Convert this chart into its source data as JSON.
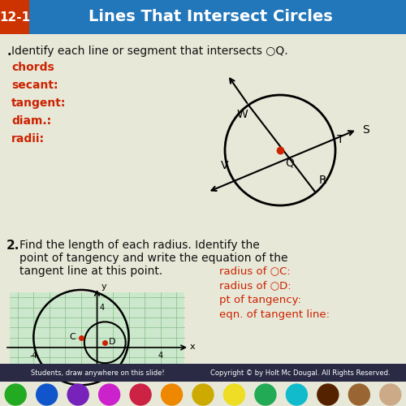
{
  "title": "Lines That Intersect Circles",
  "title_num": "12-1",
  "title_bg": "#2277bb",
  "title_red_bg": "#cc3300",
  "bg_color": "#e8e8d8",
  "section1_text": ". Identify each line or segment that intersects ○Q.",
  "labels_red": [
    "chords",
    "secant:",
    "tangent:",
    "diam.:",
    "radii:"
  ],
  "section2_text": "2. Find the length of each radius. Identify the\n    point of tangency and write the equation of the\n    tangent line at this point.",
  "labels2_red": [
    "radius of ○C:",
    "radius of ○D:",
    "pt of tangency:",
    "eqn. of tangent line:"
  ],
  "footer_left": "Students, draw anywhere on this slide!",
  "footer_right": "Copyright © by Holt Mc Dougal. All Rights Reserved.",
  "dot_colors": [
    "#22aa22",
    "#1155cc",
    "#7722bb",
    "#cc22cc",
    "#cc2244",
    "#ee8800",
    "#ccaa00",
    "#eedd22",
    "#22aa55",
    "#11bbcc",
    "#552200",
    "#996633",
    "#ccaa88"
  ],
  "text_color_black": "#111111",
  "text_color_red": "#cc2200",
  "grid_bg": "#cce8cc"
}
